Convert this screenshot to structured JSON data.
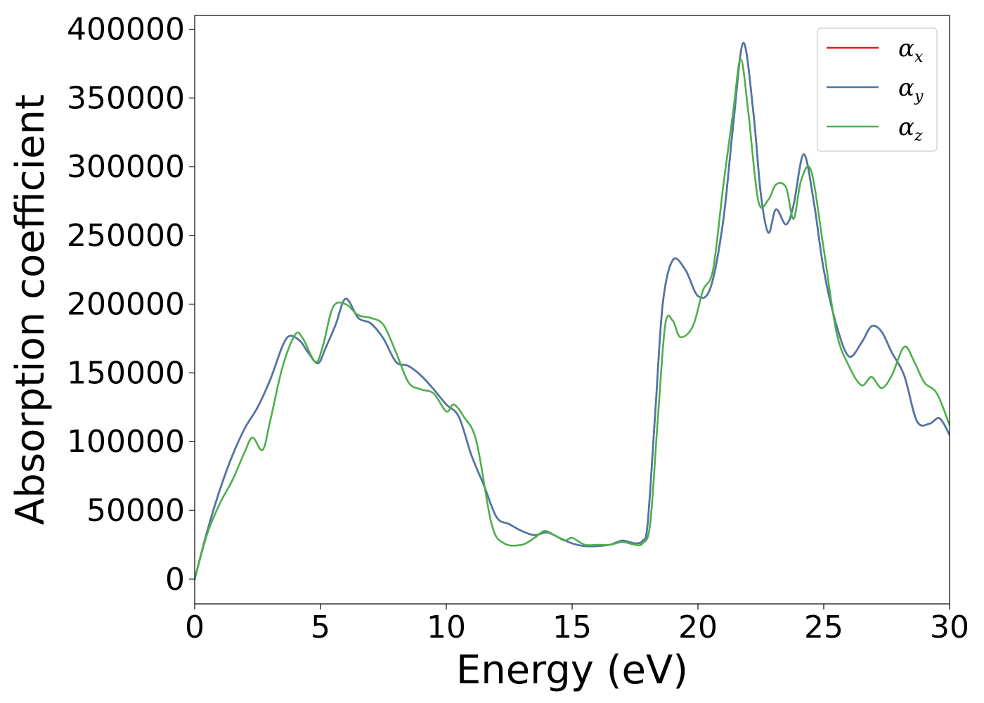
{
  "chart_data": {
    "type": "line",
    "title": "",
    "xlabel": "Energy (eV)",
    "ylabel": "Absorption coefficient",
    "xlim": [
      0,
      30
    ],
    "ylim": [
      -18000,
      410000
    ],
    "xticks": [
      0,
      5,
      10,
      15,
      20,
      25,
      30
    ],
    "yticks": [
      0,
      50000,
      100000,
      150000,
      200000,
      250000,
      300000,
      350000,
      400000
    ],
    "grid": false,
    "legend_position": "top-right",
    "series": [
      {
        "name": "αx",
        "legend_symbol": "α",
        "legend_subscript": "x",
        "color": "#e41a1c",
        "x": [
          0,
          0.5,
          1.0,
          1.5,
          2.0,
          2.5,
          3.0,
          3.5,
          3.8,
          4.2,
          4.5,
          4.9,
          5.2,
          5.6,
          6.0,
          6.5,
          7.0,
          7.5,
          8.0,
          8.5,
          9.0,
          9.5,
          10.0,
          10.5,
          11.0,
          11.5,
          12.0,
          12.5,
          13.0,
          13.5,
          14.0,
          14.5,
          15.0,
          15.5,
          16.0,
          16.5,
          17.0,
          17.5,
          17.8,
          18.0,
          18.3,
          18.6,
          19.0,
          19.5,
          20.0,
          20.5,
          21.0,
          21.4,
          21.8,
          22.2,
          22.5,
          22.8,
          23.1,
          23.5,
          23.8,
          24.2,
          24.6,
          25.0,
          25.5,
          26.0,
          26.5,
          26.9,
          27.3,
          27.7,
          28.2,
          28.7,
          29.2,
          29.6,
          30.0
        ],
        "values": [
          0,
          35000,
          65000,
          90000,
          110000,
          125000,
          145000,
          170000,
          177000,
          173000,
          165000,
          157000,
          168000,
          185000,
          204000,
          190000,
          186000,
          175000,
          158000,
          155000,
          148000,
          138000,
          127000,
          118000,
          90000,
          68000,
          45000,
          40000,
          35000,
          32000,
          34000,
          30000,
          26000,
          24000,
          24000,
          25000,
          28000,
          26000,
          28000,
          40000,
          120000,
          200000,
          232000,
          225000,
          206000,
          212000,
          260000,
          330000,
          390000,
          340000,
          280000,
          252000,
          269000,
          258000,
          272000,
          309000,
          275000,
          225000,
          185000,
          162000,
          172000,
          184000,
          180000,
          165000,
          148000,
          115000,
          113000,
          117000,
          105000
        ]
      },
      {
        "name": "αy",
        "legend_symbol": "α",
        "legend_subscript": "y",
        "color": "#4a78a8",
        "x": [
          0,
          0.5,
          1.0,
          1.5,
          2.0,
          2.5,
          3.0,
          3.5,
          3.8,
          4.2,
          4.5,
          4.9,
          5.2,
          5.6,
          6.0,
          6.5,
          7.0,
          7.5,
          8.0,
          8.5,
          9.0,
          9.5,
          10.0,
          10.5,
          11.0,
          11.5,
          12.0,
          12.5,
          13.0,
          13.5,
          14.0,
          14.5,
          15.0,
          15.5,
          16.0,
          16.5,
          17.0,
          17.5,
          17.8,
          18.0,
          18.3,
          18.6,
          19.0,
          19.5,
          20.0,
          20.5,
          21.0,
          21.4,
          21.8,
          22.2,
          22.5,
          22.8,
          23.1,
          23.5,
          23.8,
          24.2,
          24.6,
          25.0,
          25.5,
          26.0,
          26.5,
          26.9,
          27.3,
          27.7,
          28.2,
          28.7,
          29.2,
          29.6,
          30.0
        ],
        "values": [
          0,
          35000,
          65000,
          90000,
          110000,
          125000,
          145000,
          170000,
          177000,
          173000,
          165000,
          157000,
          168000,
          185000,
          204000,
          190000,
          186000,
          175000,
          158000,
          155000,
          148000,
          138000,
          127000,
          118000,
          90000,
          68000,
          45000,
          40000,
          35000,
          32000,
          34000,
          30000,
          26000,
          24000,
          24000,
          25000,
          28000,
          26000,
          28000,
          40000,
          120000,
          200000,
          232000,
          225000,
          206000,
          212000,
          260000,
          330000,
          390000,
          340000,
          280000,
          252000,
          269000,
          258000,
          272000,
          309000,
          275000,
          225000,
          185000,
          162000,
          172000,
          184000,
          180000,
          165000,
          148000,
          115000,
          113000,
          117000,
          105000
        ]
      },
      {
        "name": "αz",
        "legend_symbol": "α",
        "legend_subscript": "z",
        "color": "#4daf4a",
        "x": [
          0,
          0.5,
          1.0,
          1.5,
          2.0,
          2.3,
          2.7,
          3.0,
          3.5,
          4.0,
          4.3,
          4.8,
          5.1,
          5.5,
          6.0,
          6.5,
          7.0,
          7.5,
          8.0,
          8.5,
          9.0,
          9.5,
          10.0,
          10.3,
          10.7,
          11.2,
          11.8,
          12.3,
          13.0,
          13.5,
          13.9,
          14.3,
          14.7,
          15.0,
          15.5,
          16.0,
          16.5,
          17.0,
          17.5,
          17.8,
          18.1,
          18.4,
          18.7,
          19.0,
          19.3,
          19.8,
          20.2,
          20.6,
          21.0,
          21.4,
          21.7,
          22.0,
          22.4,
          22.8,
          23.1,
          23.5,
          23.8,
          24.1,
          24.5,
          25.0,
          25.5,
          26.0,
          26.5,
          26.9,
          27.3,
          27.7,
          28.2,
          28.6,
          29.0,
          29.5,
          30.0
        ],
        "values": [
          0,
          33000,
          55000,
          72000,
          93000,
          103000,
          94000,
          115000,
          155000,
          178000,
          175000,
          158000,
          170000,
          198000,
          200000,
          192000,
          190000,
          185000,
          165000,
          143000,
          138000,
          135000,
          122000,
          127000,
          118000,
          100000,
          40000,
          26000,
          25000,
          30000,
          35000,
          32000,
          28000,
          30000,
          25000,
          25000,
          25000,
          27000,
          25000,
          26000,
          40000,
          115000,
          185000,
          188000,
          176000,
          184000,
          210000,
          225000,
          285000,
          340000,
          378000,
          340000,
          275000,
          276000,
          287000,
          285000,
          262000,
          290000,
          297000,
          240000,
          180000,
          155000,
          141000,
          147000,
          139000,
          148000,
          169000,
          158000,
          143000,
          135000,
          112000
        ]
      }
    ]
  }
}
